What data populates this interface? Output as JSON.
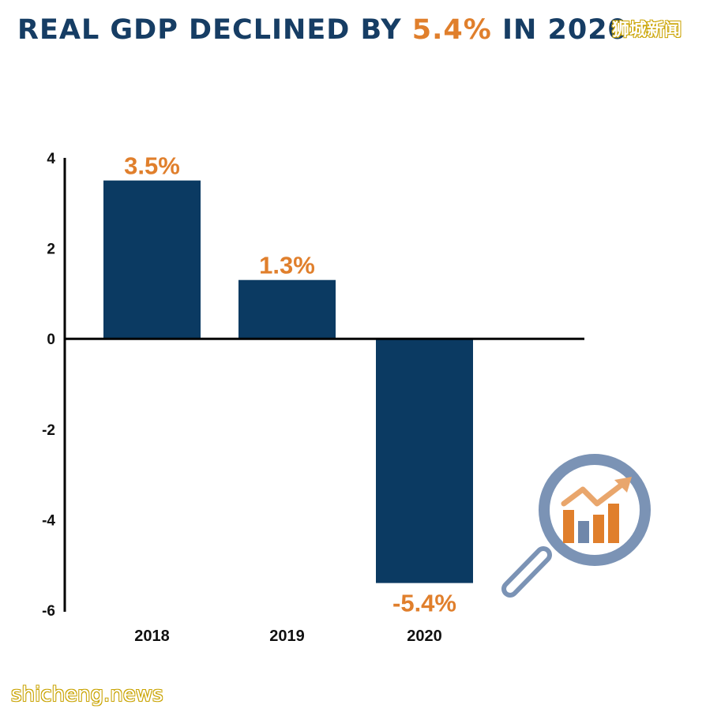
{
  "title": {
    "prefix": "REAL GDP DECLINED BY ",
    "highlight": "5.4%",
    "suffix": " IN 2020"
  },
  "watermarks": {
    "top": "狮城新闻",
    "bottom": "shicheng.news"
  },
  "colors": {
    "title": "#163d64",
    "accent": "#e07f2c",
    "bar": "#0b3a62",
    "axis": "#000000",
    "icon_ring": "#7b93b5",
    "icon_orange": "#e07f2c",
    "icon_blue": "#6f87aa"
  },
  "icon": "magnifier-chart-icon",
  "chart_data": {
    "type": "bar",
    "categories": [
      "2018",
      "2019",
      "2020"
    ],
    "values": [
      3.5,
      1.3,
      -5.4
    ],
    "data_labels": [
      "3.5%",
      "1.3%",
      "-5.4%"
    ],
    "title": "REAL GDP DECLINED BY 5.4% IN 2020",
    "xlabel": "",
    "ylabel": "",
    "ylim": [
      -6,
      4
    ],
    "yticks": [
      4,
      2,
      0,
      -2,
      -4,
      -6
    ],
    "grid": false,
    "legend": "none"
  }
}
